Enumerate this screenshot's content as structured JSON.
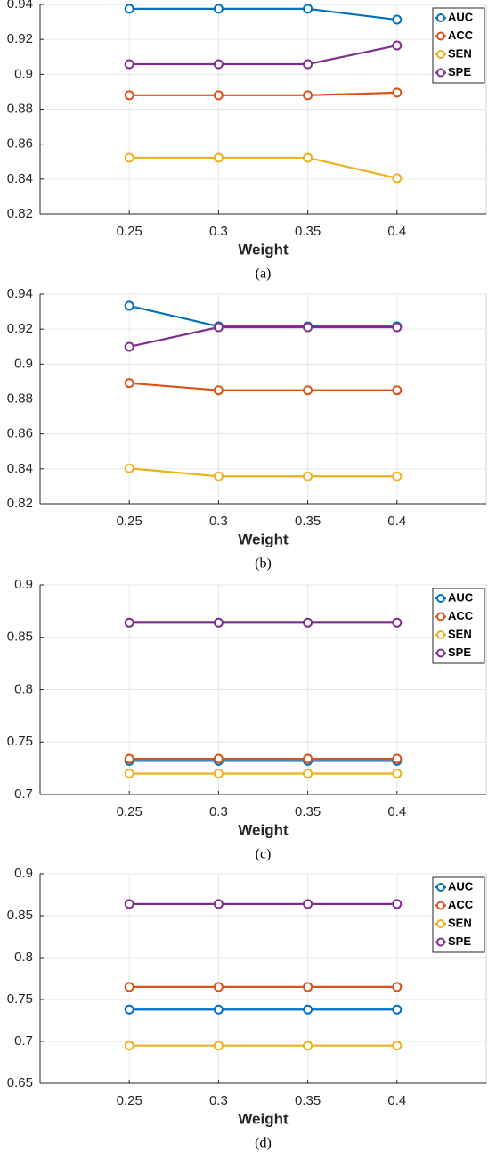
{
  "chart_data": [
    {
      "type": "line",
      "caption": "(a)",
      "xlabel": "Weight",
      "x": [
        0.25,
        0.3,
        0.35,
        0.4
      ],
      "xlim": [
        0.2,
        0.45
      ],
      "xticks": [
        0.25,
        0.3,
        0.35,
        0.4
      ],
      "ylim": [
        0.82,
        0.94
      ],
      "yticks": [
        0.82,
        0.84,
        0.86,
        0.88,
        0.9,
        0.92,
        0.94
      ],
      "grid": true,
      "legend": "upper right",
      "series": [
        {
          "name": "AUC",
          "color": "#0072bd",
          "values": [
            0.9375,
            0.9375,
            0.9375,
            0.9313
          ]
        },
        {
          "name": "ACC",
          "color": "#d95319",
          "values": [
            0.888,
            0.888,
            0.888,
            0.8895
          ]
        },
        {
          "name": "SEN",
          "color": "#edb120",
          "values": [
            0.8522,
            0.8522,
            0.8522,
            0.8405
          ]
        },
        {
          "name": "SPE",
          "color": "#7e2f8e",
          "values": [
            0.9058,
            0.9058,
            0.9058,
            0.9165
          ]
        }
      ]
    },
    {
      "type": "line",
      "caption": "(b)",
      "xlabel": "Weight",
      "x": [
        0.25,
        0.3,
        0.35,
        0.4
      ],
      "xlim": [
        0.2,
        0.45
      ],
      "xticks": [
        0.25,
        0.3,
        0.35,
        0.4
      ],
      "ylim": [
        0.82,
        0.94
      ],
      "yticks": [
        0.82,
        0.84,
        0.86,
        0.88,
        0.9,
        0.92,
        0.94
      ],
      "grid": true,
      "series": [
        {
          "name": "AUC",
          "color": "#0072bd",
          "values": [
            0.9334,
            0.9216,
            0.9216,
            0.9216
          ]
        },
        {
          "name": "ACC",
          "color": "#d95319",
          "values": [
            0.8891,
            0.885,
            0.885,
            0.885
          ]
        },
        {
          "name": "SEN",
          "color": "#edb120",
          "values": [
            0.8403,
            0.8357,
            0.8357,
            0.8357
          ]
        },
        {
          "name": "SPE",
          "color": "#7e2f8e",
          "values": [
            0.9099,
            0.9211,
            0.9211,
            0.9211
          ]
        }
      ]
    },
    {
      "type": "line",
      "caption": "(c)",
      "xlabel": "Weight",
      "x": [
        0.25,
        0.3,
        0.35,
        0.4
      ],
      "xlim": [
        0.2,
        0.45
      ],
      "xticks": [
        0.25,
        0.3,
        0.35,
        0.4
      ],
      "ylim": [
        0.7,
        0.9
      ],
      "yticks": [
        0.7,
        0.75,
        0.8,
        0.85,
        0.9
      ],
      "grid": true,
      "legend": "upper right",
      "series": [
        {
          "name": "AUC",
          "color": "#0072bd",
          "values": [
            0.732,
            0.732,
            0.732,
            0.732
          ]
        },
        {
          "name": "ACC",
          "color": "#d95319",
          "values": [
            0.734,
            0.734,
            0.734,
            0.734
          ]
        },
        {
          "name": "SEN",
          "color": "#edb120",
          "values": [
            0.72,
            0.72,
            0.72,
            0.72
          ]
        },
        {
          "name": "SPE",
          "color": "#7e2f8e",
          "values": [
            0.864,
            0.864,
            0.864,
            0.864
          ]
        }
      ]
    },
    {
      "type": "line",
      "caption": "(d)",
      "xlabel": "Weight",
      "x": [
        0.25,
        0.3,
        0.35,
        0.4
      ],
      "xlim": [
        0.2,
        0.45
      ],
      "xticks": [
        0.25,
        0.3,
        0.35,
        0.4
      ],
      "ylim": [
        0.65,
        0.9
      ],
      "yticks": [
        0.65,
        0.7,
        0.75,
        0.8,
        0.85,
        0.9
      ],
      "grid": true,
      "legend": "upper right",
      "series": [
        {
          "name": "AUC",
          "color": "#0072bd",
          "values": [
            0.738,
            0.738,
            0.738,
            0.738
          ]
        },
        {
          "name": "ACC",
          "color": "#d95319",
          "values": [
            0.765,
            0.765,
            0.765,
            0.765
          ]
        },
        {
          "name": "SEN",
          "color": "#edb120",
          "values": [
            0.695,
            0.695,
            0.695,
            0.695
          ]
        },
        {
          "name": "SPE",
          "color": "#7e2f8e",
          "values": [
            0.864,
            0.864,
            0.864,
            0.864
          ]
        }
      ]
    }
  ]
}
